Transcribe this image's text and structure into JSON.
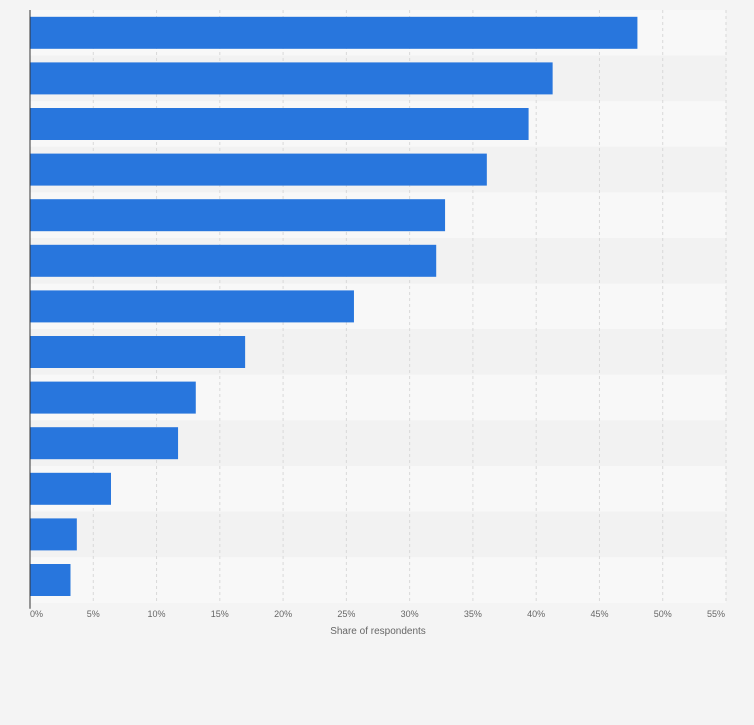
{
  "chart_data": {
    "type": "bar",
    "orientation": "horizontal",
    "xlabel": "Share of respondents",
    "xlim": [
      0,
      55
    ],
    "x_ticks": [
      "0%",
      "5%",
      "10%",
      "15%",
      "20%",
      "25%",
      "30%",
      "35%",
      "40%",
      "45%",
      "50%",
      "55%"
    ],
    "values": [
      48,
      41.3,
      39.4,
      36.1,
      32.8,
      32.1,
      25.6,
      17,
      13.1,
      11.7,
      6.4,
      3.7,
      3.2
    ],
    "unit": "%",
    "grid": true,
    "legend": "none",
    "colors": {
      "bar": "#2876dd",
      "band_light": "#f8f8f8",
      "band_dark": "#f2f2f2",
      "grid": "#d9d9d9",
      "axis": "#333333",
      "text": "#666666",
      "background": "#f4f4f4"
    }
  }
}
